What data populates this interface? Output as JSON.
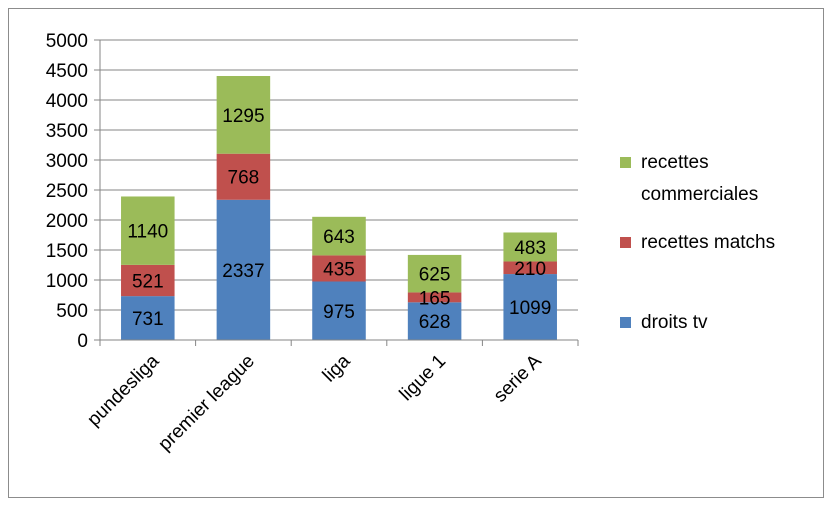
{
  "chart_data": {
    "type": "bar",
    "stacked": true,
    "categories": [
      "pundesliga",
      "premier league",
      "liga",
      "ligue 1",
      "serie A"
    ],
    "series": [
      {
        "name": "droits tv",
        "values": [
          731,
          2337,
          975,
          628,
          1099
        ],
        "color": "#4f81bd"
      },
      {
        "name": "recettes matchs",
        "values": [
          521,
          768,
          435,
          165,
          210
        ],
        "color": "#c0504d"
      },
      {
        "name": "recettes commerciales",
        "values": [
          1140,
          1295,
          643,
          625,
          483
        ],
        "color": "#9bbb59"
      }
    ],
    "title": "",
    "xlabel": "",
    "ylabel": "",
    "ylim": [
      0,
      5000
    ],
    "yticks": [
      0,
      500,
      1000,
      1500,
      2000,
      2500,
      3000,
      3500,
      4000,
      4500,
      5000
    ],
    "grid": true,
    "legend_position": "right",
    "legend_order": [
      "recettes commerciales",
      "recettes matchs",
      "droits tv"
    ],
    "legend_lines": {
      "recettes commerciales": [
        "recettes",
        "commerciales"
      ],
      "recettes matchs": [
        "recettes matchs"
      ],
      "droits tv": [
        "droits tv"
      ]
    }
  }
}
